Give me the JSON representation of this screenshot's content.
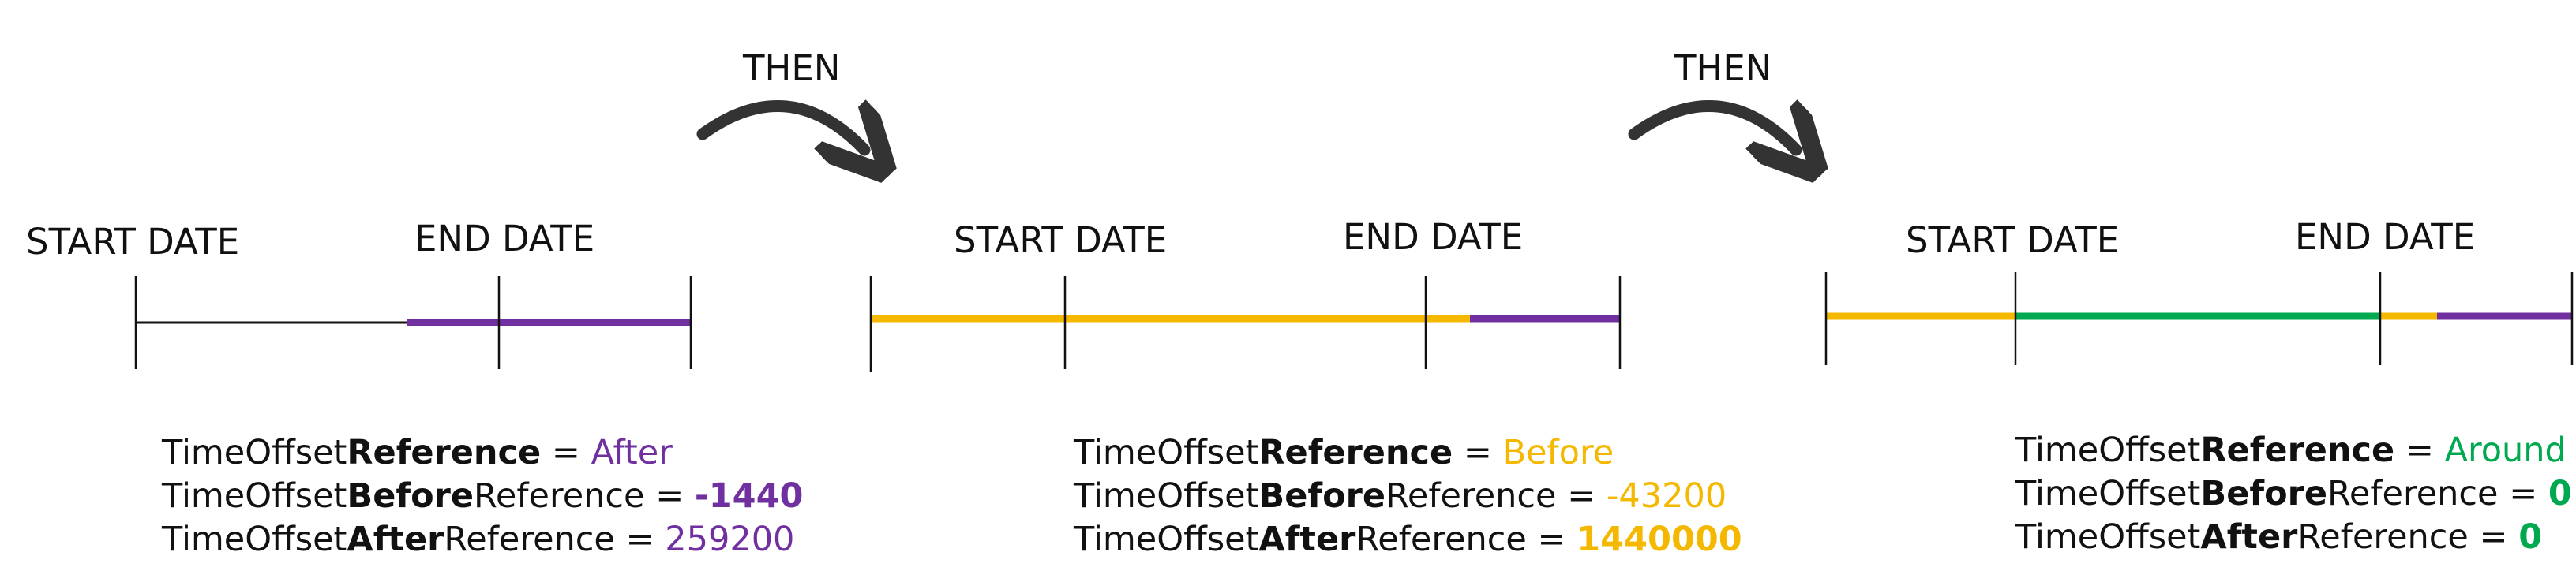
{
  "colors": {
    "after": "#7030A0",
    "before": "#F5B800",
    "around": "#00A84F",
    "neutral": "#111111",
    "arrow": "#333333"
  },
  "arrows": [
    {
      "label": "THEN"
    },
    {
      "label": "THEN"
    }
  ],
  "panels": [
    {
      "start_label": "START DATE",
      "end_label": "END DATE",
      "reference": {
        "prefix": "TimeOffset",
        "key": "Reference",
        "suffix": "",
        "eq": " = ",
        "value": "After",
        "color": "after",
        "bold": false
      },
      "before": {
        "prefix": "TimeOffset",
        "key": "Before",
        "suffix": "Reference",
        "eq": " = ",
        "value": "-1440",
        "color": "after",
        "bold": true
      },
      "after": {
        "prefix": "TimeOffset",
        "key": "After",
        "suffix": "Reference",
        "eq": " = ",
        "value": "259200",
        "color": "after",
        "bold": false
      }
    },
    {
      "start_label": "START DATE",
      "end_label": "END DATE",
      "reference": {
        "prefix": "TimeOffset",
        "key": "Reference",
        "suffix": "",
        "eq": " = ",
        "value": "Before",
        "color": "before",
        "bold": false
      },
      "before": {
        "prefix": "TimeOffset",
        "key": "Before",
        "suffix": "Reference",
        "eq": " = ",
        "value": "-43200",
        "color": "before",
        "bold": false
      },
      "after": {
        "prefix": "TimeOffset",
        "key": "After",
        "suffix": "Reference",
        "eq": " = ",
        "value": "1440000",
        "color": "before",
        "bold": true
      }
    },
    {
      "start_label": "START DATE",
      "end_label": "END DATE",
      "reference": {
        "prefix": "TimeOffset",
        "key": "Reference",
        "suffix": "",
        "eq": " = ",
        "value": "Around",
        "color": "around",
        "bold": false
      },
      "before": {
        "prefix": "TimeOffset",
        "key": "Before",
        "suffix": "Reference",
        "eq": " = ",
        "value": "0",
        "color": "around",
        "bold": true
      },
      "after": {
        "prefix": "TimeOffset",
        "key": "After",
        "suffix": "Reference",
        "eq": " = ",
        "value": "0",
        "color": "around",
        "bold": true
      }
    }
  ]
}
